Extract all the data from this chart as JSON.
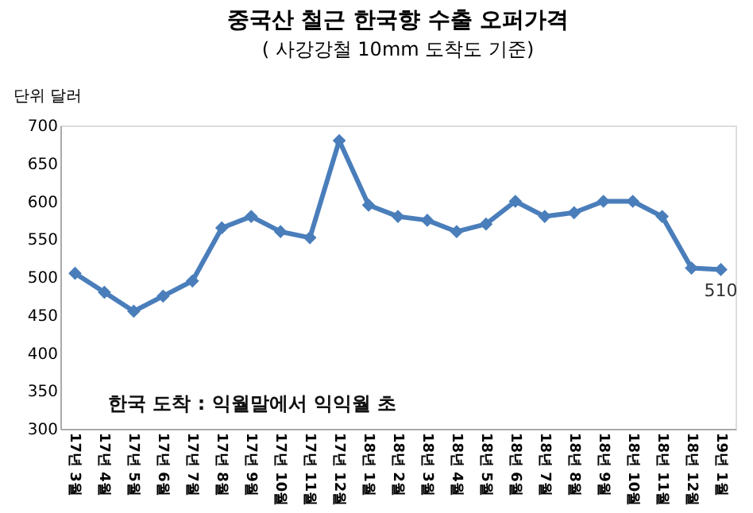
{
  "chart_data": {
    "type": "line",
    "title": "중국산 철근 한국향 수출 오퍼가격",
    "subtitle": "( 사강강철 10mm 도착도 기준)",
    "ylabel": "단위 달러",
    "categories": [
      "17년 3월",
      "17년 4월",
      "17년 5월",
      "17년 6월",
      "17년 7월",
      "17년 8월",
      "17년 9월",
      "17년 10월",
      "17년 11월",
      "17년 12월",
      "18년 1월",
      "18년 2월",
      "18년 3월",
      "18년 4월",
      "18년 5월",
      "18년 6월",
      "18년 7월",
      "18년 8월",
      "18년 9월",
      "18년 10월",
      "18년 11월",
      "18년 12월",
      "19년 1월"
    ],
    "series": [
      {
        "color": "#4a7ebb",
        "values": [
          505,
          480,
          455,
          475,
          495,
          565,
          580,
          560,
          552,
          680,
          595,
          580,
          575,
          560,
          570,
          600,
          580,
          585,
          600,
          600,
          580,
          512,
          510
        ],
        "value_labels": [
          null,
          null,
          null,
          null,
          null,
          null,
          null,
          null,
          null,
          null,
          null,
          null,
          null,
          null,
          null,
          null,
          null,
          null,
          null,
          null,
          null,
          null,
          "510"
        ]
      }
    ],
    "ylim": [
      300,
      700
    ],
    "yticks": [
      300,
      350,
      400,
      450,
      500,
      550,
      600,
      650,
      700
    ],
    "grid": false,
    "marker": "diamond",
    "line_style": "solid",
    "annotations": [
      "한국 도착 : 익월말에서 익익월 초"
    ]
  }
}
